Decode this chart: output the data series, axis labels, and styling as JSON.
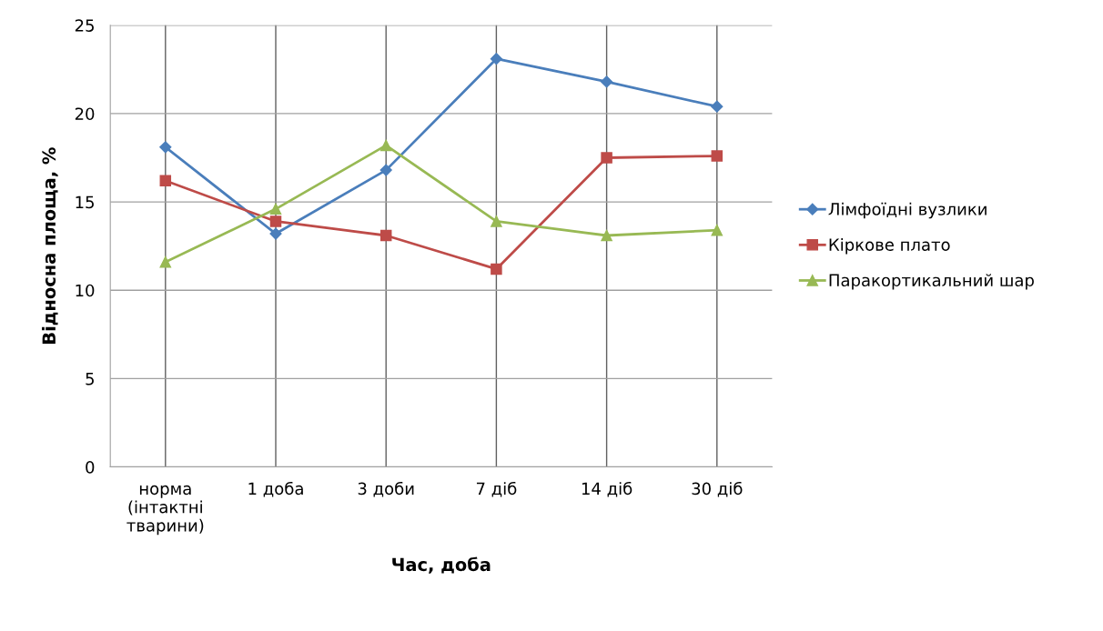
{
  "chart_data": {
    "type": "line",
    "xlabel": "Час, доба",
    "ylabel": "Відносна площа, %",
    "categories": [
      "норма\n(інтактні\nтварини)",
      "1 доба",
      "3 доби",
      "7 діб",
      "14 діб",
      "30 діб"
    ],
    "series": [
      {
        "name": "Лімфоїдні вузлики",
        "color": "#4a7ebb",
        "marker": "diamond",
        "values": [
          18.1,
          13.2,
          16.8,
          23.1,
          21.8,
          20.4
        ]
      },
      {
        "name": "Кіркове плато",
        "color": "#be4b48",
        "marker": "square",
        "values": [
          16.2,
          13.9,
          13.1,
          11.2,
          17.5,
          17.6
        ]
      },
      {
        "name": "Паракортикальний шар",
        "color": "#98b954",
        "marker": "triangle",
        "values": [
          11.6,
          14.6,
          18.2,
          13.9,
          13.1,
          13.4
        ]
      }
    ],
    "ylim": [
      0,
      25
    ],
    "yticks": [
      0,
      5,
      10,
      15,
      20,
      25
    ],
    "grid": true,
    "legend": "right"
  }
}
